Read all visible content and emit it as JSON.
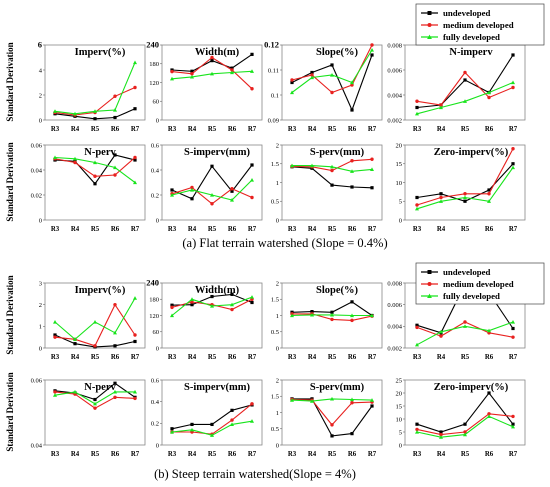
{
  "legend_top": {
    "items": [
      "undeveloped",
      "medium developed",
      "fully developed"
    ]
  },
  "legend_bottom": {
    "items": [
      "undeveloped",
      "medium developed",
      "fully developed"
    ]
  },
  "series_colors": {
    "undeveloped": "#000000",
    "medium developed": "#e8211f",
    "fully developed": "#18e41c"
  },
  "captions": {
    "flat": "(a) Flat terrain watershed (Slope = 0.4%)",
    "steep": "(b) Steep terrain watershed(Slope = 4%)"
  },
  "y_axis_labels": {
    "flat_row1": "Standard Derivation",
    "flat_row2": "Standard Derivation",
    "steep_row1": "Standard Derivation",
    "steep_row2": "Standard Derivation"
  },
  "chart_data": [
    {
      "type": "line",
      "section": "flat",
      "title": "Imperv(%)",
      "categories": [
        "R3",
        "R4",
        "R5",
        "R6",
        "R7"
      ],
      "ylim": [
        0,
        6
      ],
      "yticks": [
        "6",
        "4",
        "2",
        "0"
      ],
      "bold_top_tick": true,
      "series": [
        {
          "name": "undeveloped",
          "values": [
            0.5,
            0.3,
            0.1,
            0.2,
            0.9
          ]
        },
        {
          "name": "medium developed",
          "values": [
            0.6,
            0.4,
            0.6,
            1.9,
            2.6
          ]
        },
        {
          "name": "fully developed",
          "values": [
            0.7,
            0.5,
            0.7,
            0.8,
            4.6
          ]
        }
      ]
    },
    {
      "type": "line",
      "section": "flat",
      "title": "Width(m)",
      "categories": [
        "R3",
        "R4",
        "R5",
        "R6",
        "R7"
      ],
      "ylim": [
        0,
        240
      ],
      "yticks": [
        "240",
        "180",
        "120",
        "60",
        "0"
      ],
      "bold_top_tick": true,
      "series": [
        {
          "name": "undeveloped",
          "values": [
            160,
            156,
            190,
            166,
            210
          ]
        },
        {
          "name": "medium developed",
          "values": [
            155,
            148,
            200,
            160,
            100
          ]
        },
        {
          "name": "fully developed",
          "values": [
            132,
            138,
            148,
            152,
            156
          ]
        }
      ]
    },
    {
      "type": "line",
      "section": "flat",
      "title": "Slope(%)",
      "categories": [
        "R3",
        "R4",
        "R5",
        "R6",
        "R7"
      ],
      "ylim": [
        0.09,
        0.12
      ],
      "yticks": [
        "0.12",
        "0.11",
        "0.1",
        "0.09"
      ],
      "bold_top_tick": true,
      "series": [
        {
          "name": "undeveloped",
          "values": [
            0.105,
            0.109,
            0.112,
            0.094,
            0.116
          ]
        },
        {
          "name": "medium developed",
          "values": [
            0.106,
            0.108,
            0.101,
            0.104,
            0.12
          ]
        },
        {
          "name": "fully developed",
          "values": [
            0.101,
            0.107,
            0.108,
            0.105,
            0.118
          ]
        }
      ]
    },
    {
      "type": "line",
      "section": "flat",
      "title": "N-imperv",
      "categories": [
        "R3",
        "R4",
        "R5",
        "R6",
        "R7"
      ],
      "ylim": [
        0.002,
        0.008
      ],
      "yticks": [
        "0.008",
        "0.006",
        "0.004",
        "0.002"
      ],
      "bold_top_tick": false,
      "series": [
        {
          "name": "undeveloped",
          "values": [
            0.003,
            0.0032,
            0.0052,
            0.0042,
            0.0072
          ]
        },
        {
          "name": "medium developed",
          "values": [
            0.0035,
            0.0032,
            0.0058,
            0.0038,
            0.0046
          ]
        },
        {
          "name": "fully developed",
          "values": [
            0.0025,
            0.003,
            0.0035,
            0.0042,
            0.005
          ]
        }
      ]
    },
    {
      "type": "line",
      "section": "flat",
      "title": "N-perv",
      "categories": [
        "R3",
        "R4",
        "R5",
        "R6",
        "R7"
      ],
      "ylim": [
        0,
        0.06
      ],
      "yticks": [
        "0.06",
        "0.04",
        "0.02",
        "0"
      ],
      "bold_top_tick": false,
      "series": [
        {
          "name": "undeveloped",
          "values": [
            0.048,
            0.047,
            0.029,
            0.052,
            0.048
          ]
        },
        {
          "name": "medium developed",
          "values": [
            0.049,
            0.046,
            0.035,
            0.036,
            0.05
          ]
        },
        {
          "name": "fully developed",
          "values": [
            0.05,
            0.049,
            0.046,
            0.042,
            0.03
          ]
        }
      ]
    },
    {
      "type": "line",
      "section": "flat",
      "title": "S-imperv(mm)",
      "categories": [
        "R3",
        "R4",
        "R5",
        "R6",
        "R7"
      ],
      "ylim": [
        0,
        0.6
      ],
      "yticks": [
        "0.6",
        "0.4",
        "0.2",
        "0"
      ],
      "bold_top_tick": false,
      "series": [
        {
          "name": "undeveloped",
          "values": [
            0.24,
            0.17,
            0.43,
            0.23,
            0.44
          ]
        },
        {
          "name": "medium developed",
          "values": [
            0.21,
            0.26,
            0.13,
            0.25,
            0.18
          ]
        },
        {
          "name": "fully developed",
          "values": [
            0.2,
            0.24,
            0.2,
            0.16,
            0.32
          ]
        }
      ]
    },
    {
      "type": "line",
      "section": "flat",
      "title": "S-perv(mm)",
      "categories": [
        "R3",
        "R4",
        "R5",
        "R6",
        "R7"
      ],
      "ylim": [
        0,
        2
      ],
      "yticks": [
        "2",
        "1.5",
        "1",
        "0.5",
        "0"
      ],
      "bold_top_tick": false,
      "series": [
        {
          "name": "undeveloped",
          "values": [
            1.42,
            1.38,
            0.93,
            0.88,
            0.86
          ]
        },
        {
          "name": "medium developed",
          "values": [
            1.43,
            1.42,
            1.32,
            1.58,
            1.62
          ]
        },
        {
          "name": "fully developed",
          "values": [
            1.45,
            1.45,
            1.42,
            1.3,
            1.35
          ]
        }
      ]
    },
    {
      "type": "line",
      "section": "flat",
      "title": "Zero-imperv(%)",
      "categories": [
        "R3",
        "R4",
        "R5",
        "R6",
        "R7"
      ],
      "ylim": [
        0,
        20
      ],
      "yticks": [
        "20",
        "15",
        "10",
        "5",
        "0"
      ],
      "bold_top_tick": false,
      "series": [
        {
          "name": "undeveloped",
          "values": [
            6,
            7,
            5,
            8,
            15
          ]
        },
        {
          "name": "medium developed",
          "values": [
            4,
            6,
            7,
            7,
            19
          ]
        },
        {
          "name": "fully developed",
          "values": [
            3,
            5,
            6,
            5,
            14
          ]
        }
      ]
    },
    {
      "type": "line",
      "section": "steep",
      "title": "Imperv(%)",
      "categories": [
        "R3",
        "R4",
        "R5",
        "R6",
        "R7"
      ],
      "ylim": [
        0,
        3
      ],
      "yticks": [
        "3",
        "2",
        "1",
        "0"
      ],
      "bold_top_tick": false,
      "series": [
        {
          "name": "undeveloped",
          "values": [
            0.6,
            0.2,
            0.05,
            0.1,
            0.3
          ]
        },
        {
          "name": "medium developed",
          "values": [
            0.5,
            0.4,
            0.1,
            2.0,
            0.6
          ]
        },
        {
          "name": "fully developed",
          "values": [
            1.2,
            0.4,
            1.2,
            0.7,
            2.3
          ]
        }
      ]
    },
    {
      "type": "line",
      "section": "steep",
      "title": "Width(m)",
      "categories": [
        "R3",
        "R4",
        "R5",
        "R6",
        "R7"
      ],
      "ylim": [
        0,
        240
      ],
      "yticks": [
        "240",
        "180",
        "120",
        "60",
        "0"
      ],
      "bold_top_tick": true,
      "series": [
        {
          "name": "undeveloped",
          "values": [
            158,
            160,
            190,
            198,
            168
          ]
        },
        {
          "name": "medium developed",
          "values": [
            150,
            170,
            160,
            142,
            180
          ]
        },
        {
          "name": "fully developed",
          "values": [
            120,
            180,
            155,
            160,
            188
          ]
        }
      ]
    },
    {
      "type": "line",
      "section": "steep",
      "title": "Slope(%)",
      "categories": [
        "R3",
        "R4",
        "R5",
        "R6",
        "R7"
      ],
      "ylim": [
        0,
        2
      ],
      "yticks": [
        "2",
        "1.5",
        "1",
        "0.5",
        "0"
      ],
      "bold_top_tick": false,
      "series": [
        {
          "name": "undeveloped",
          "values": [
            1.1,
            1.12,
            1.1,
            1.42,
            1.0
          ]
        },
        {
          "name": "medium developed",
          "values": [
            1.05,
            1.05,
            0.88,
            0.85,
            0.98
          ]
        },
        {
          "name": "fully developed",
          "values": [
            1.0,
            1.02,
            1.02,
            1.0,
            1.0
          ]
        }
      ]
    },
    {
      "type": "line",
      "section": "steep",
      "title": "N-imperv",
      "categories": [
        "R3",
        "R4",
        "R5",
        "R6",
        "R7"
      ],
      "ylim": [
        0.002,
        0.008
      ],
      "yticks": [
        "0.008",
        "0.006",
        "0.004",
        "0.002"
      ],
      "bold_top_tick": false,
      "series": [
        {
          "name": "undeveloped",
          "values": [
            0.0041,
            0.0034,
            0.0079,
            0.0071,
            0.0038
          ]
        },
        {
          "name": "medium developed",
          "values": [
            0.0039,
            0.0031,
            0.0044,
            0.0034,
            0.003
          ]
        },
        {
          "name": "fully developed",
          "values": [
            0.0023,
            0.0035,
            0.004,
            0.0036,
            0.0044
          ]
        }
      ]
    },
    {
      "type": "line",
      "section": "steep",
      "title": "N-perv",
      "categories": [
        "R3",
        "R4",
        "R5",
        "R6",
        "R7"
      ],
      "ylim": [
        0,
        0.06
      ],
      "yticks": [
        "0.06",
        "0.04"
      ],
      "bold_top_tick": false,
      "series": [
        {
          "name": "undeveloped",
          "values": [
            0.05,
            0.048,
            0.042,
            0.057,
            0.044
          ]
        },
        {
          "name": "medium developed",
          "values": [
            0.049,
            0.047,
            0.034,
            0.044,
            0.043
          ]
        },
        {
          "name": "fully developed",
          "values": [
            0.046,
            0.049,
            0.038,
            0.049,
            0.049
          ]
        }
      ]
    },
    {
      "type": "line",
      "section": "steep",
      "title": "S-imperv(mm)",
      "categories": [
        "R3",
        "R4",
        "R5",
        "R6",
        "R7"
      ],
      "ylim": [
        0,
        0.6
      ],
      "yticks": [
        "0.6",
        "0.4",
        "0.2",
        "0"
      ],
      "bold_top_tick": false,
      "series": [
        {
          "name": "undeveloped",
          "values": [
            0.15,
            0.19,
            0.19,
            0.32,
            0.37
          ]
        },
        {
          "name": "medium developed",
          "values": [
            0.12,
            0.12,
            0.1,
            0.23,
            0.38
          ]
        },
        {
          "name": "fully developed",
          "values": [
            0.12,
            0.14,
            0.09,
            0.19,
            0.22
          ]
        }
      ]
    },
    {
      "type": "line",
      "section": "steep",
      "title": "S-perv(mm)",
      "categories": [
        "R3",
        "R4",
        "R5",
        "R6",
        "R7"
      ],
      "ylim": [
        0,
        2
      ],
      "yticks": [
        "2",
        "1.5",
        "1",
        "0.5",
        "0"
      ],
      "bold_top_tick": false,
      "series": [
        {
          "name": "undeveloped",
          "values": [
            1.42,
            1.42,
            0.28,
            0.35,
            1.2
          ]
        },
        {
          "name": "medium developed",
          "values": [
            1.4,
            1.38,
            0.62,
            1.3,
            1.32
          ]
        },
        {
          "name": "fully developed",
          "values": [
            1.38,
            1.35,
            1.42,
            1.4,
            1.38
          ]
        }
      ]
    },
    {
      "type": "line",
      "section": "steep",
      "title": "Zero-imperv(%)",
      "categories": [
        "R3",
        "R4",
        "R5",
        "R6",
        "R7"
      ],
      "ylim": [
        0,
        25
      ],
      "yticks": [
        "25",
        "20",
        "15",
        "10",
        "5",
        "0"
      ],
      "bold_top_tick": false,
      "series": [
        {
          "name": "undeveloped",
          "values": [
            8,
            5,
            8,
            20,
            8
          ]
        },
        {
          "name": "medium developed",
          "values": [
            6,
            4,
            5,
            12,
            11
          ]
        },
        {
          "name": "fully developed",
          "values": [
            5,
            3,
            4,
            11,
            7
          ]
        }
      ]
    }
  ]
}
